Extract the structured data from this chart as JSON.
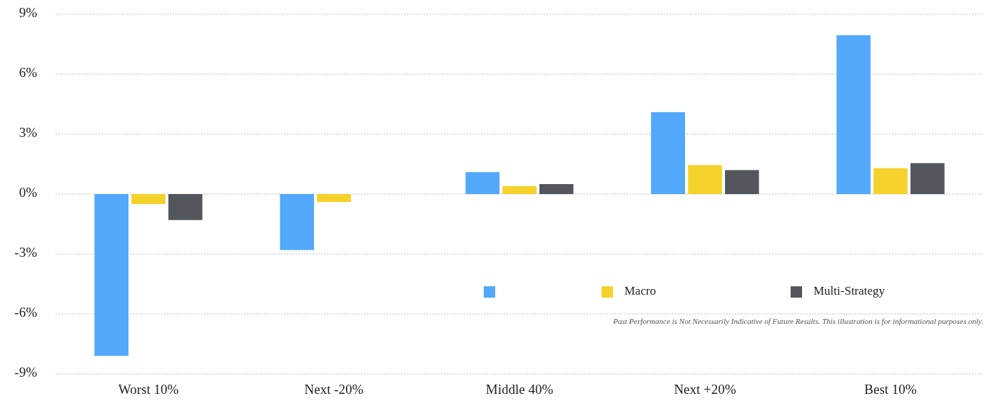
{
  "chart_data": {
    "type": "bar",
    "categories": [
      "Worst 10%",
      "Next -20%",
      "Middle 40%",
      "Next +20%",
      "Best 10%"
    ],
    "series": [
      {
        "color": "#52a8fa",
        "values": [
          -8.1,
          -2.8,
          1.1,
          4.1,
          7.95
        ]
      },
      {
        "name": "Macro",
        "color": "#f5d22b",
        "values": [
          -0.5,
          -0.4,
          0.4,
          1.45,
          1.3
        ]
      },
      {
        "name": "Multi-Strategy",
        "color": "#53565c",
        "values": [
          -1.3,
          null,
          0.5,
          1.2,
          1.55
        ]
      }
    ],
    "ylim": [
      -9,
      9
    ],
    "yticks": [
      {
        "value": -9,
        "label": "-9%"
      },
      {
        "value": -6,
        "label": "-6%"
      },
      {
        "value": -3,
        "label": "-3%"
      },
      {
        "value": 0,
        "label": "0%"
      },
      {
        "value": 3,
        "label": "3%"
      },
      {
        "value": 6,
        "label": "6%"
      },
      {
        "value": 9,
        "label": "9%"
      }
    ],
    "grid": "y",
    "legend": "bottom right",
    "annotations": [
      "Past Performance is Not Necessarily Indicative of Future Results. This illustration is for informational purposes only."
    ]
  }
}
